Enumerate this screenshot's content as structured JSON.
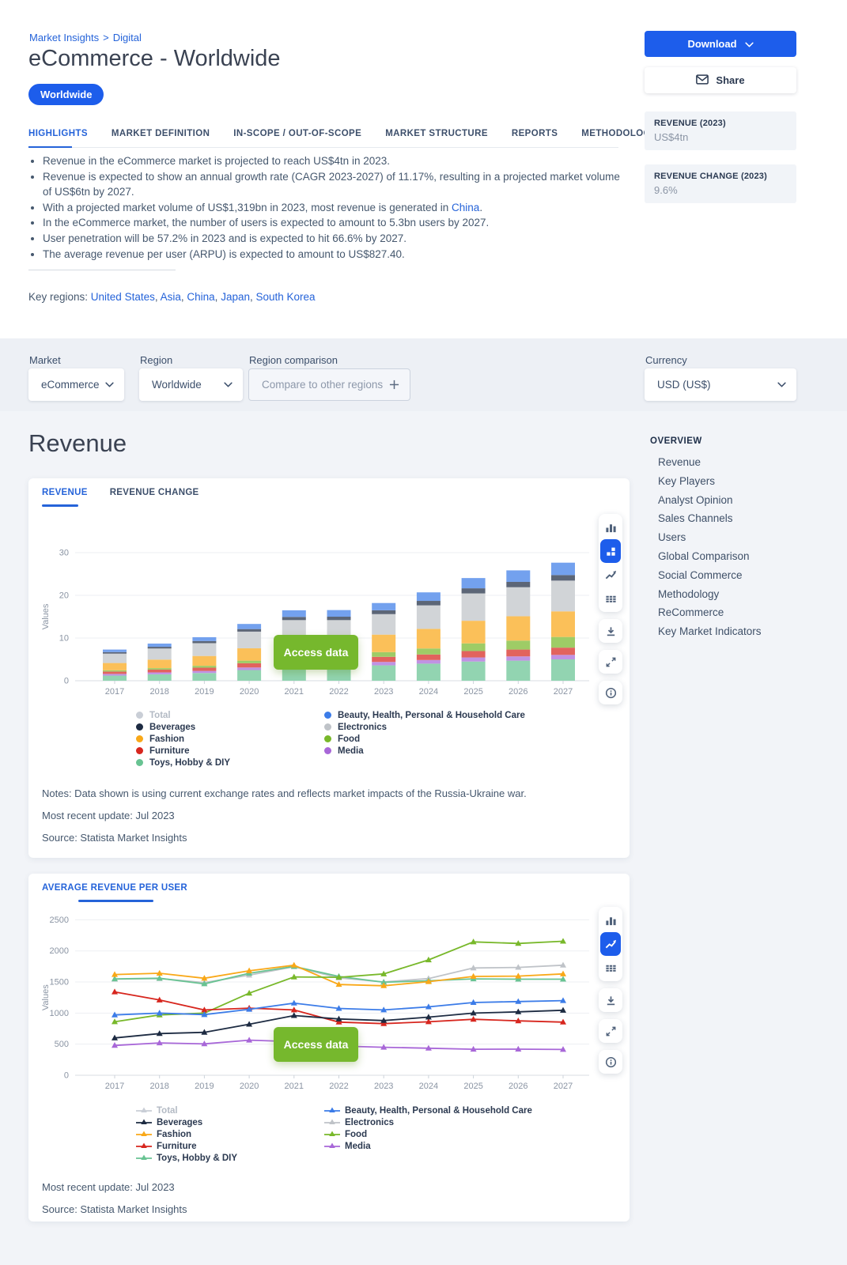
{
  "colors": {
    "accent": "#2563d9",
    "primary_button": "#1d5deb",
    "access_green": "#76b82d"
  },
  "breadcrumb": {
    "items": [
      "Market Insights",
      "Digital"
    ],
    "separator": ">"
  },
  "header": {
    "title": "eCommerce - Worldwide",
    "badge": "Worldwide"
  },
  "actions": {
    "download_label": "Download",
    "share_label": "Share"
  },
  "kpis": [
    {
      "label": "REVENUE (2023)",
      "value": "US$4tn"
    },
    {
      "label": "REVENUE CHANGE (2023)",
      "value": "9.6%"
    }
  ],
  "tabs": {
    "active": "HIGHLIGHTS",
    "items": [
      "HIGHLIGHTS",
      "MARKET DEFINITION",
      "IN-SCOPE / OUT-OF-SCOPE",
      "MARKET STRUCTURE",
      "REPORTS",
      "METHODOLOGY"
    ]
  },
  "highlights": {
    "bullets": [
      [
        {
          "text": "Revenue in the eCommerce market is projected to reach US$4tn in 2023."
        }
      ],
      [
        {
          "text": "Revenue is expected to show an annual growth rate (CAGR 2023-2027) of 11.17%, resulting in a projected market volume of US$6tn by 2027."
        }
      ],
      [
        {
          "text": "With a projected market volume of US$1,319bn in 2023, most revenue is generated in "
        },
        {
          "text": "China",
          "link": true
        },
        {
          "text": "."
        }
      ],
      [
        {
          "text": "In the eCommerce market, the number of users is expected to amount to 5.3bn users by 2027."
        }
      ],
      [
        {
          "text": "User penetration will be 57.2% in 2023 and is expected to hit 66.6% by 2027."
        }
      ],
      [
        {
          "text": "The average revenue per user (ARPU) is expected to amount to US$827.40."
        }
      ]
    ],
    "key_regions_label": "Key regions:",
    "key_regions": [
      "United States",
      "Asia",
      "China",
      "Japan",
      "South Korea"
    ]
  },
  "filters": {
    "market": {
      "label": "Market",
      "value": "eCommerce"
    },
    "region": {
      "label": "Region",
      "value": "Worldwide"
    },
    "region_comparison": {
      "label": "Region comparison",
      "value": "Compare to other regions",
      "icon": "plus-icon"
    },
    "currency": {
      "label": "Currency",
      "value": "USD (US$)"
    }
  },
  "section": {
    "title": "Revenue"
  },
  "overview_nav": {
    "title": "OVERVIEW",
    "items": [
      "Revenue",
      "Key Players",
      "Analyst Opinion",
      "Sales Channels",
      "Users",
      "Global Comparison",
      "Social Commerce",
      "Methodology",
      "ReCommerce",
      "Key Market Indicators"
    ]
  },
  "revenue_card": {
    "tabs": [
      "REVENUE",
      "REVENUE CHANGE"
    ],
    "active_tab": "REVENUE",
    "access_button": "Access data",
    "notes": "Notes: Data shown is using current exchange rates and reflects market impacts of the Russia-Ukraine war.",
    "updated": "Most recent update: Jul 2023",
    "source": "Source: Statista Market Insights",
    "toolbar": {
      "group": [
        "bar-chart-icon",
        "stacked-chart-icon",
        "line-chart-icon",
        "table-icon"
      ],
      "active": "stacked-chart-icon",
      "extras": [
        "download-icon",
        "expand-icon",
        "info-icon"
      ]
    }
  },
  "arpu_card": {
    "tabs": [
      "AVERAGE REVENUE PER USER"
    ],
    "active_tab": "AVERAGE REVENUE PER USER",
    "access_button": "Access data",
    "updated": "Most recent update: Jul 2023",
    "source": "Source: Statista Market Insights",
    "toolbar": {
      "group": [
        "bar-chart-icon",
        "line-chart-icon",
        "table-icon"
      ],
      "active": "line-chart-icon",
      "extras": [
        "download-icon",
        "expand-icon",
        "info-icon"
      ]
    }
  },
  "chart_data": [
    {
      "type": "bar",
      "stacked": true,
      "title": "Revenue",
      "xlabel": "",
      "ylabel": "Values",
      "ylim": [
        0,
        30
      ],
      "yticks": [
        0,
        10,
        20,
        30
      ],
      "grid": true,
      "legend_position": "bottom",
      "categories": [
        2017,
        2018,
        2019,
        2020,
        2021,
        2022,
        2023,
        2024,
        2025,
        2026,
        2027
      ],
      "series": [
        {
          "name": "Toys, Hobby & DIY",
          "color": "#68c392",
          "values": [
            1.2,
            1.5,
            1.8,
            2.5,
            3.2,
            3.2,
            3.6,
            4.0,
            4.5,
            4.7,
            5.0
          ]
        },
        {
          "name": "Media",
          "color": "#a867d8",
          "values": [
            0.4,
            0.45,
            0.5,
            0.6,
            0.75,
            0.75,
            0.8,
            0.85,
            0.95,
            1.0,
            1.05
          ]
        },
        {
          "name": "Furniture",
          "color": "#d7261e",
          "values": [
            0.55,
            0.65,
            0.75,
            1.0,
            1.25,
            1.15,
            1.2,
            1.3,
            1.5,
            1.6,
            1.7
          ]
        },
        {
          "name": "Food",
          "color": "#78b82a",
          "values": [
            0.3,
            0.35,
            0.45,
            0.6,
            0.8,
            0.9,
            1.1,
            1.4,
            1.8,
            2.1,
            2.5
          ]
        },
        {
          "name": "Fashion",
          "color": "#f9a818",
          "values": [
            1.7,
            2.0,
            2.3,
            2.9,
            3.6,
            3.7,
            4.1,
            4.6,
            5.3,
            5.7,
            6.0
          ]
        },
        {
          "name": "Electronics",
          "color": "#bfc3c8",
          "values": [
            2.2,
            2.6,
            3.0,
            3.9,
            4.6,
            4.5,
            4.8,
            5.5,
            6.4,
            6.8,
            7.2
          ]
        },
        {
          "name": "Beverages",
          "color": "#1d2b42",
          "values": [
            0.35,
            0.4,
            0.5,
            0.6,
            0.75,
            0.8,
            0.9,
            1.05,
            1.2,
            1.25,
            1.3
          ]
        },
        {
          "name": "Beauty, Health, Personal & Household Care",
          "color": "#3c7ce8",
          "values": [
            0.6,
            0.75,
            0.9,
            1.2,
            1.55,
            1.55,
            1.7,
            2.0,
            2.4,
            2.7,
            2.9
          ]
        }
      ],
      "legend": {
        "columns": [
          [
            {
              "label": "Total",
              "color": "#c9ced6",
              "disabled": true
            },
            {
              "label": "Beverages",
              "color": "#1d2b42"
            },
            {
              "label": "Fashion",
              "color": "#f9a818"
            },
            {
              "label": "Furniture",
              "color": "#d7261e"
            },
            {
              "label": "Toys, Hobby & DIY",
              "color": "#68c392"
            }
          ],
          [
            {
              "label": "Beauty, Health, Personal & Household Care",
              "color": "#3c7ce8"
            },
            {
              "label": "Electronics",
              "color": "#bfc3c8"
            },
            {
              "label": "Food",
              "color": "#78b82a"
            },
            {
              "label": "Media",
              "color": "#a867d8"
            }
          ]
        ]
      }
    },
    {
      "type": "line",
      "title": "Average Revenue per User",
      "xlabel": "",
      "ylabel": "Values",
      "ylim": [
        0,
        2500
      ],
      "yticks": [
        0,
        500,
        1000,
        1500,
        2000,
        2500
      ],
      "grid": true,
      "legend_position": "bottom",
      "categories": [
        2017,
        2018,
        2019,
        2020,
        2021,
        2022,
        2023,
        2024,
        2025,
        2026,
        2027
      ],
      "series": [
        {
          "name": "Electronics",
          "color": "#bfc3c8",
          "values": [
            1545,
            1555,
            1490,
            1610,
            1745,
            1565,
            1500,
            1555,
            1725,
            1735,
            1770
          ]
        },
        {
          "name": "Toys, Hobby & DIY",
          "color": "#68c392",
          "values": [
            1550,
            1560,
            1470,
            1640,
            1750,
            1590,
            1495,
            1520,
            1550,
            1545,
            1545
          ]
        },
        {
          "name": "Fashion",
          "color": "#f9a818",
          "values": [
            1620,
            1640,
            1560,
            1680,
            1770,
            1460,
            1440,
            1505,
            1590,
            1595,
            1630
          ]
        },
        {
          "name": "Food",
          "color": "#78b82a",
          "values": [
            860,
            970,
            1000,
            1320,
            1580,
            1575,
            1630,
            1855,
            2145,
            2120,
            2155
          ]
        },
        {
          "name": "Furniture",
          "color": "#d7261e",
          "values": [
            1340,
            1210,
            1050,
            1080,
            1050,
            855,
            830,
            860,
            900,
            875,
            855
          ]
        },
        {
          "name": "Beauty, Health, Personal & Household Care",
          "color": "#3c7ce8",
          "values": [
            970,
            1000,
            975,
            1060,
            1160,
            1075,
            1050,
            1100,
            1170,
            1185,
            1200
          ]
        },
        {
          "name": "Beverages",
          "color": "#1d2b42",
          "values": [
            600,
            670,
            690,
            820,
            960,
            905,
            880,
            935,
            1000,
            1020,
            1045
          ]
        },
        {
          "name": "Media",
          "color": "#a867d8",
          "values": [
            480,
            520,
            505,
            565,
            540,
            470,
            450,
            435,
            418,
            420,
            415
          ]
        }
      ],
      "legend": {
        "columns": [
          [
            {
              "label": "Total",
              "color": "#c9ced6",
              "disabled": true
            },
            {
              "label": "Beverages",
              "color": "#1d2b42"
            },
            {
              "label": "Fashion",
              "color": "#f9a818"
            },
            {
              "label": "Furniture",
              "color": "#d7261e"
            },
            {
              "label": "Toys, Hobby & DIY",
              "color": "#68c392"
            }
          ],
          [
            {
              "label": "Beauty, Health, Personal & Household Care",
              "color": "#3c7ce8"
            },
            {
              "label": "Electronics",
              "color": "#bfc3c8"
            },
            {
              "label": "Food",
              "color": "#78b82a"
            },
            {
              "label": "Media",
              "color": "#a867d8"
            }
          ]
        ]
      }
    }
  ]
}
